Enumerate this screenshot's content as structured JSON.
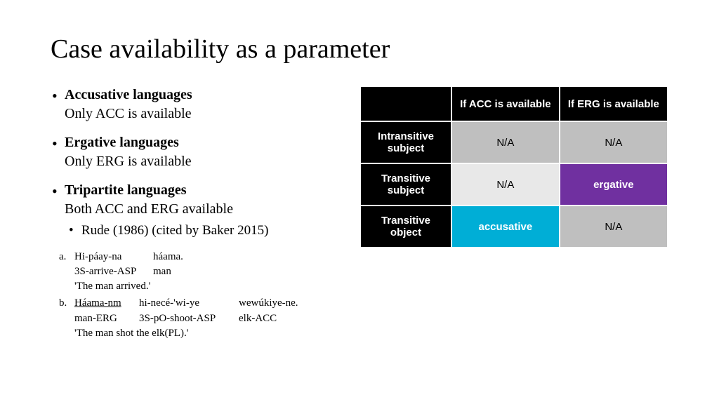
{
  "title": "Case availability as a parameter",
  "bullets": {
    "accusative": {
      "heading": "Accusative languages",
      "body": "Only ACC is available"
    },
    "ergative": {
      "heading": "Ergative languages",
      "body": "Only ERG is available"
    },
    "tripartite": {
      "heading": "Tripartite languages",
      "body": "Both ACC and ERG available"
    },
    "citation": "Rude (1986) (cited by Baker 2015)"
  },
  "examples": {
    "a": {
      "label": "a.",
      "words": [
        "Hi-páay-na",
        "háama."
      ],
      "gloss": [
        "3S-arrive-ASP",
        "man"
      ],
      "widths": [
        110,
        80
      ],
      "translation": "'The man arrived.'"
    },
    "b": {
      "label": "b.",
      "words": [
        "Háama-nm",
        "hi-necé-'wi-ye",
        "wewúkiye-ne."
      ],
      "gloss": [
        "man-ERG",
        "3S-pO-shoot-ASP",
        "elk-ACC"
      ],
      "widths": [
        90,
        140,
        100
      ],
      "underline_word0": true,
      "translation": "'The man shot the elk(PL).'"
    }
  },
  "table": {
    "colhead1": "If ACC is available",
    "colhead2": "If ERG is available",
    "rows": [
      {
        "label": "Intransitive subject",
        "c1": "N/A",
        "c1_class": "cell-na-dark",
        "c2": "N/A",
        "c2_class": "cell-na-dark"
      },
      {
        "label": "Transitive subject",
        "c1": "N/A",
        "c1_class": "cell-na-light",
        "c2": "ergative",
        "c2_class": "cell-erg"
      },
      {
        "label": "Transitive object",
        "c1": "accusative",
        "c1_class": "cell-acc",
        "c2": "N/A",
        "c2_class": "cell-na-dark"
      }
    ]
  },
  "colors": {
    "black": "#000000",
    "acc": "#00aed6",
    "erg": "#7030a0",
    "na_dark": "#bfbfbf",
    "na_light": "#e8e8e8"
  }
}
